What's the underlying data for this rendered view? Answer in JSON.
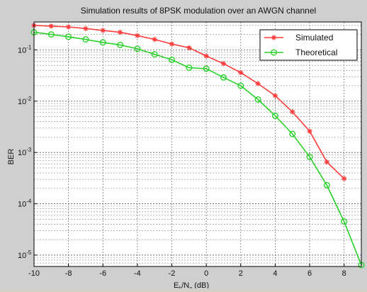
{
  "chart_data": {
    "type": "line",
    "title": "Simulation results of 8PSK modulation over an AWGN channel",
    "xlabel": "E_b/N_o (dB)",
    "xlabel_main": "E",
    "xlabel_sub1": "b",
    "xlabel_mid": "/N",
    "xlabel_sub2": "o",
    "xlabel_tail": " (dB)",
    "ylabel": "BER",
    "xlim": [
      -10,
      9
    ],
    "ylim": [
      6e-06,
      0.35
    ],
    "yscale": "log",
    "grid": true,
    "legend_position": "top-right",
    "x_ticks": [
      -10,
      -8,
      -6,
      -4,
      -2,
      0,
      2,
      4,
      6,
      8
    ],
    "x_tick_labels": [
      "-10",
      "-8",
      "-6",
      "-4",
      "-2",
      "0",
      "2",
      "4",
      "6",
      "8"
    ],
    "y_ticks": [
      {
        "value": 0.1,
        "base": "10",
        "exp": "-1"
      },
      {
        "value": 0.01,
        "base": "10",
        "exp": "-2"
      },
      {
        "value": 0.001,
        "base": "10",
        "exp": "-3"
      },
      {
        "value": 0.0001,
        "base": "10",
        "exp": "-4"
      },
      {
        "value": 1e-05,
        "base": "10",
        "exp": "-5"
      }
    ],
    "series": [
      {
        "name": "Simulated",
        "color": "#ff3c3c",
        "marker": "star",
        "x": [
          -10,
          -9,
          -8,
          -7,
          -6,
          -5,
          -4,
          -3,
          -2,
          -1,
          0,
          1,
          2,
          3,
          4,
          5,
          6,
          7,
          8
        ],
        "y": [
          0.3,
          0.29,
          0.28,
          0.26,
          0.24,
          0.22,
          0.19,
          0.16,
          0.13,
          0.11,
          0.076,
          0.054,
          0.036,
          0.022,
          0.0128,
          0.0062,
          0.0026,
          0.00065,
          0.00031
        ]
      },
      {
        "name": "Theoretical",
        "color": "#2bd12b",
        "marker": "circle",
        "x": [
          -10,
          -9,
          -8,
          -7,
          -6,
          -5,
          -4,
          -3,
          -2,
          -1,
          0,
          1,
          2,
          3,
          4,
          5,
          6,
          7,
          8,
          9
        ],
        "y": [
          0.22,
          0.2,
          0.18,
          0.16,
          0.14,
          0.125,
          0.105,
          0.082,
          0.064,
          0.045,
          0.043,
          0.029,
          0.02,
          0.0108,
          0.0052,
          0.0023,
          0.00082,
          0.00023,
          4.51e-05,
          6.4e-06
        ]
      }
    ]
  }
}
